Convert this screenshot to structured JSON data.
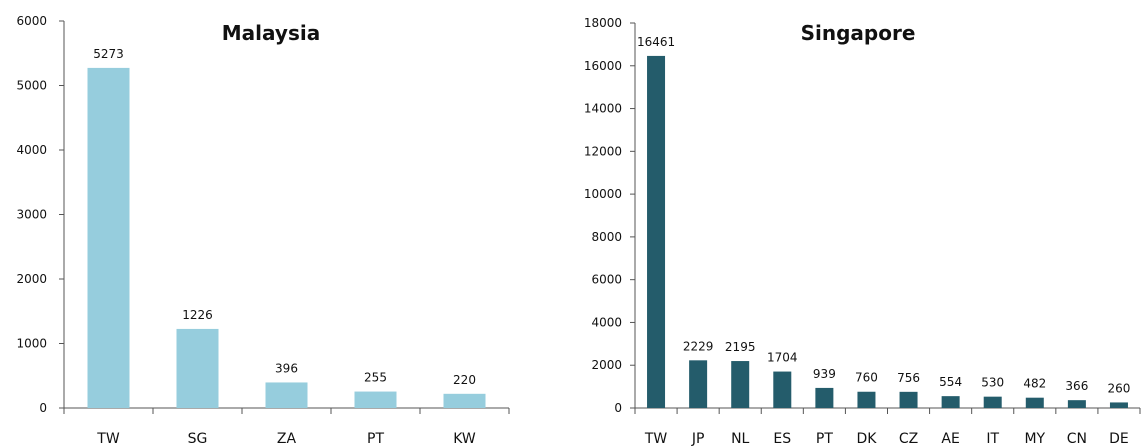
{
  "chart_data": [
    {
      "type": "bar",
      "title": "Malaysia",
      "categories": [
        "TW",
        "SG",
        "ZA",
        "PT",
        "KW"
      ],
      "values": [
        5273,
        1226,
        396,
        255,
        220
      ],
      "ylim": [
        0,
        6000
      ],
      "yticks": [
        0,
        1000,
        2000,
        3000,
        4000,
        5000,
        6000
      ],
      "color": "#96cddd",
      "grid": false,
      "xlabel": "",
      "ylabel": ""
    },
    {
      "type": "bar",
      "title": "Singapore",
      "categories": [
        "TW",
        "JP",
        "NL",
        "ES",
        "PT",
        "DK",
        "CZ",
        "AE",
        "IT",
        "MY",
        "CN",
        "DE"
      ],
      "values": [
        16461,
        2229,
        2195,
        1704,
        939,
        760,
        756,
        554,
        530,
        482,
        366,
        260
      ],
      "ylim": [
        0,
        18000
      ],
      "yticks": [
        0,
        2000,
        4000,
        6000,
        8000,
        10000,
        12000,
        14000,
        16000,
        18000
      ],
      "color": "#245c6b",
      "grid": false,
      "xlabel": "",
      "ylabel": ""
    }
  ]
}
